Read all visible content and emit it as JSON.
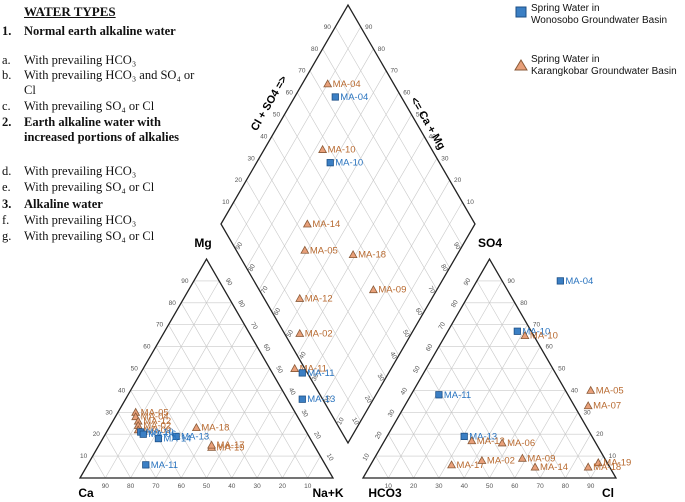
{
  "water_types": {
    "title": "WATER TYPES",
    "groups": [
      {
        "num": "1.",
        "label": "Normal earth alkaline water",
        "items": [
          {
            "key": "a.",
            "text": "With prevailing HCO₃"
          },
          {
            "key": "b.",
            "text": "With prevailing HCO₃ and SO₄ or Cl"
          },
          {
            "key": "c.",
            "text": "With prevailing SO₄ or Cl"
          }
        ]
      },
      {
        "num": "2.",
        "label": "Earth alkaline water with increased portions of alkalies",
        "items": [
          {
            "key": "d.",
            "text": "With prevailing HCO₃"
          },
          {
            "key": "e.",
            "text": "With prevailing SO₄ or Cl"
          }
        ]
      },
      {
        "num": "3.",
        "label": "Alkaline water",
        "items": [
          {
            "key": "f.",
            "text": "With prevailing HCO₃"
          },
          {
            "key": "g.",
            "text": "With prevailing SO₄ or Cl"
          }
        ]
      }
    ]
  },
  "legend": {
    "series1": {
      "label": "Spring Water in Wonosobo Groundwater Basin",
      "line1": "Spring Water in",
      "line2": "Wonosobo Groundwater Basin",
      "color": "#3b7fc4"
    },
    "series2": {
      "label": "Spring Water in Karangkobar Groundwater Basin",
      "line1": "Spring Water in",
      "line2": "Karangkobar Groundwater Basin",
      "color": "#e8a07a"
    }
  },
  "axes": {
    "mg": "Mg",
    "ca": "Ca",
    "nak": "Na+K",
    "hco3": "HCO3",
    "cl": "Cl",
    "so4": "SO4",
    "diamond_left": "Cl + SO4 =>",
    "diamond_right": "<= Ca + Mg"
  },
  "chart_data": {
    "type": "scatter",
    "plot": "Piper diagram",
    "ticks": [
      10,
      20,
      30,
      40,
      50,
      60,
      70,
      80,
      90
    ],
    "diamond_points": [
      {
        "label": "MA-04",
        "series": 2,
        "x": 0.42,
        "y": 0.82
      },
      {
        "label": "MA-04",
        "series": 1,
        "x": 0.45,
        "y": 0.79
      },
      {
        "label": "MA-10",
        "series": 2,
        "x": 0.4,
        "y": 0.67
      },
      {
        "label": "MA-10",
        "series": 1,
        "x": 0.43,
        "y": 0.64
      },
      {
        "label": "MA-14",
        "series": 2,
        "x": 0.34,
        "y": 0.5
      },
      {
        "label": "MA-05",
        "series": 2,
        "x": 0.33,
        "y": 0.44
      },
      {
        "label": "MA-18",
        "series": 2,
        "x": 0.52,
        "y": 0.43
      },
      {
        "label": "MA-09",
        "series": 2,
        "x": 0.6,
        "y": 0.35
      },
      {
        "label": "MA-12",
        "series": 2,
        "x": 0.31,
        "y": 0.33
      },
      {
        "label": "MA-02",
        "series": 2,
        "x": 0.31,
        "y": 0.25
      },
      {
        "label": "MA-11",
        "series": 2,
        "x": 0.29,
        "y": 0.17
      },
      {
        "label": "MA-11",
        "series": 1,
        "x": 0.32,
        "y": 0.16
      },
      {
        "label": "MA-13",
        "series": 1,
        "x": 0.32,
        "y": 0.1
      }
    ],
    "cation_points": [
      {
        "label": "MA-11",
        "series": 1,
        "x": 0.26,
        "y": 0.06
      },
      {
        "label": "MA-18",
        "series": 2,
        "x": 0.46,
        "y": 0.23
      },
      {
        "label": "MA-19",
        "series": 2,
        "x": 0.52,
        "y": 0.14
      },
      {
        "label": "MA-17",
        "series": 2,
        "x": 0.52,
        "y": 0.15
      },
      {
        "label": "MA-13",
        "series": 1,
        "x": 0.38,
        "y": 0.19
      },
      {
        "label": "MA-14",
        "series": 1,
        "x": 0.31,
        "y": 0.18
      },
      {
        "label": "MA-05",
        "series": 2,
        "x": 0.22,
        "y": 0.3
      },
      {
        "label": "MA-04",
        "series": 2,
        "x": 0.22,
        "y": 0.28
      },
      {
        "label": "MA-12",
        "series": 2,
        "x": 0.23,
        "y": 0.26
      },
      {
        "label": "MA-02",
        "series": 2,
        "x": 0.23,
        "y": 0.24
      },
      {
        "label": "MA-09",
        "series": 2,
        "x": 0.23,
        "y": 0.22
      },
      {
        "label": "MA-10",
        "series": 1,
        "x": 0.24,
        "y": 0.21
      },
      {
        "label": "MA-06",
        "series": 1,
        "x": 0.25,
        "y": 0.2
      }
    ],
    "anion_points": [
      {
        "label": "MA-04",
        "series": 1,
        "x": 0.78,
        "y": 0.9
      },
      {
        "label": "MA-10",
        "series": 1,
        "x": 0.61,
        "y": 0.67
      },
      {
        "label": "MA-10",
        "series": 2,
        "x": 0.64,
        "y": 0.65
      },
      {
        "label": "MA-11",
        "series": 1,
        "x": 0.3,
        "y": 0.38
      },
      {
        "label": "MA-05",
        "series": 2,
        "x": 0.9,
        "y": 0.4
      },
      {
        "label": "MA-07",
        "series": 2,
        "x": 0.89,
        "y": 0.33
      },
      {
        "label": "MA-13",
        "series": 1,
        "x": 0.4,
        "y": 0.19
      },
      {
        "label": "MA-12",
        "series": 2,
        "x": 0.43,
        "y": 0.17
      },
      {
        "label": "MA-06",
        "series": 2,
        "x": 0.55,
        "y": 0.16
      },
      {
        "label": "MA-09",
        "series": 2,
        "x": 0.63,
        "y": 0.09
      },
      {
        "label": "MA-17",
        "series": 2,
        "x": 0.35,
        "y": 0.06
      },
      {
        "label": "MA-02",
        "series": 2,
        "x": 0.47,
        "y": 0.08
      },
      {
        "label": "MA-14",
        "series": 2,
        "x": 0.68,
        "y": 0.05
      },
      {
        "label": "MA-19",
        "series": 2,
        "x": 0.93,
        "y": 0.07
      },
      {
        "label": "MA-18",
        "series": 2,
        "x": 0.89,
        "y": 0.05
      }
    ]
  }
}
